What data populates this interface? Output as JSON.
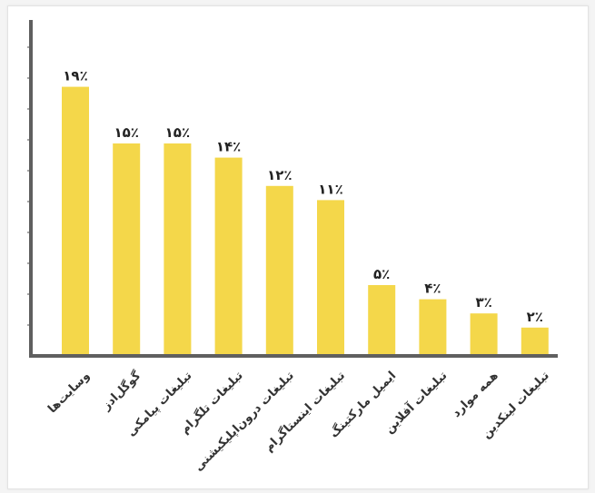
{
  "chart_data": {
    "type": "bar",
    "title": "",
    "xlabel": "",
    "ylabel": "",
    "ylim": [
      0,
      20
    ],
    "grid": false,
    "legend": "none",
    "bar_color": "#f4d74a",
    "axis_color": "#5f5f5f",
    "categories": [
      "وسایت‌ها",
      "گوگل‌ادز",
      "تبلیغات پیامکی",
      "تبلیغات تلگرام",
      "تبلیغات درون‌اپلیکیشنی",
      "تبلیغات اینستاگرام",
      "ایمیل مارکتینگ",
      "تبلیغات آفلاین",
      "همه موارد",
      "تبلیغات لینکدین"
    ],
    "values": [
      19,
      15,
      15,
      14,
      12,
      11,
      5,
      4,
      3,
      2
    ],
    "value_labels": [
      "۱۹٪",
      "۱۵٪",
      "۱۵٪",
      "۱۴٪",
      "۱۲٪",
      "۱۱٪",
      "۵٪",
      "۴٪",
      "۳٪",
      "۲٪"
    ]
  }
}
